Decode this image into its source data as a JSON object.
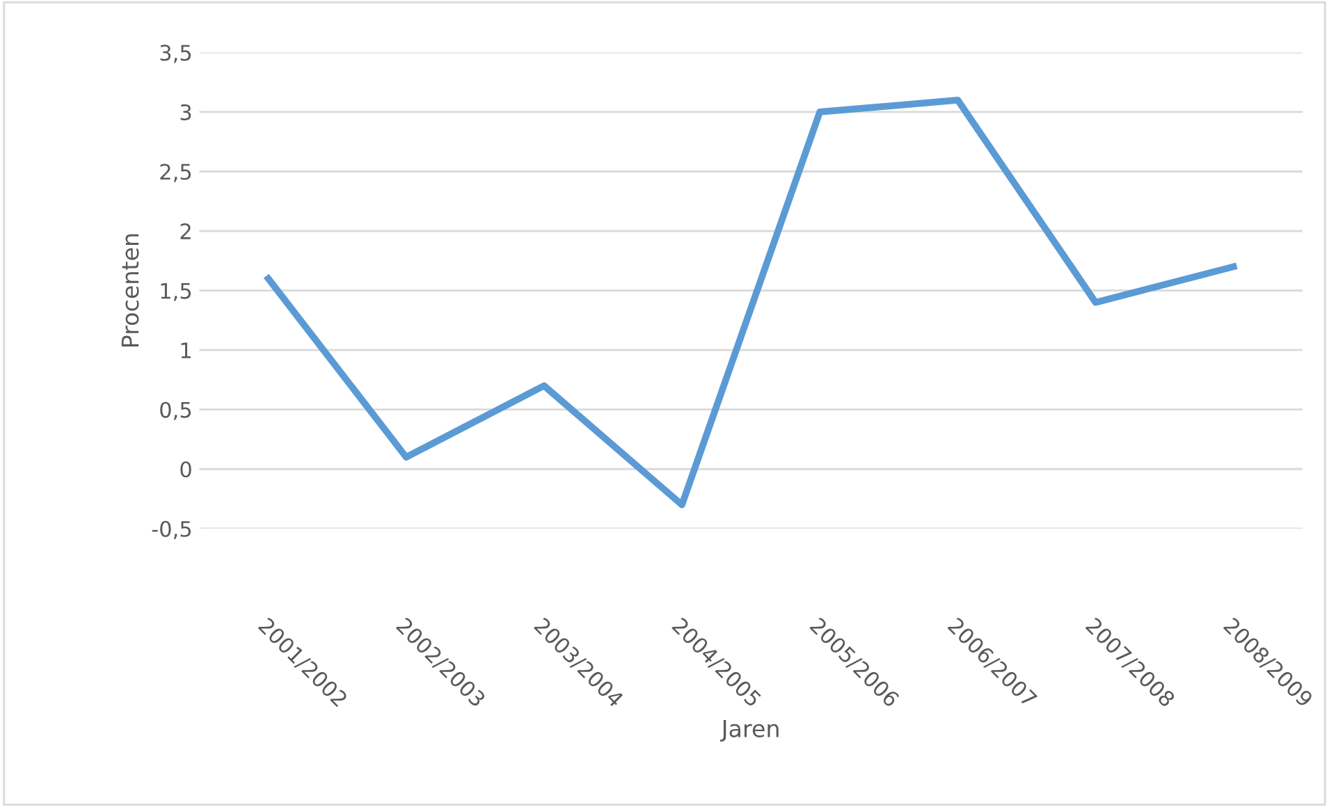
{
  "chart_data": {
    "type": "line",
    "xlabel": "Jaren",
    "ylabel": "Procenten",
    "categories": [
      "2001/2002",
      "2002/2003",
      "2003/2004",
      "2004/2005",
      "2005/2006",
      "2006/2007",
      "2007/2008",
      "2008/2009"
    ],
    "series": [
      {
        "color": "#5b9bd5",
        "values": [
          1.6,
          0.1,
          0.7,
          -0.3,
          3.0,
          3.1,
          1.4,
          1.7
        ]
      }
    ],
    "ylim": [
      -0.5,
      3.5
    ],
    "yticks": [
      {
        "value": -0.5,
        "label": "-0,5"
      },
      0,
      {
        "value": 0.5,
        "label": "0,5"
      },
      1,
      {
        "value": 1.5,
        "label": "1,5"
      },
      2,
      {
        "value": 2.5,
        "label": "2,5"
      },
      3,
      {
        "value": 3.5,
        "label": "3,5"
      }
    ],
    "grid": "y",
    "marker": "none",
    "line_style": "solid"
  }
}
